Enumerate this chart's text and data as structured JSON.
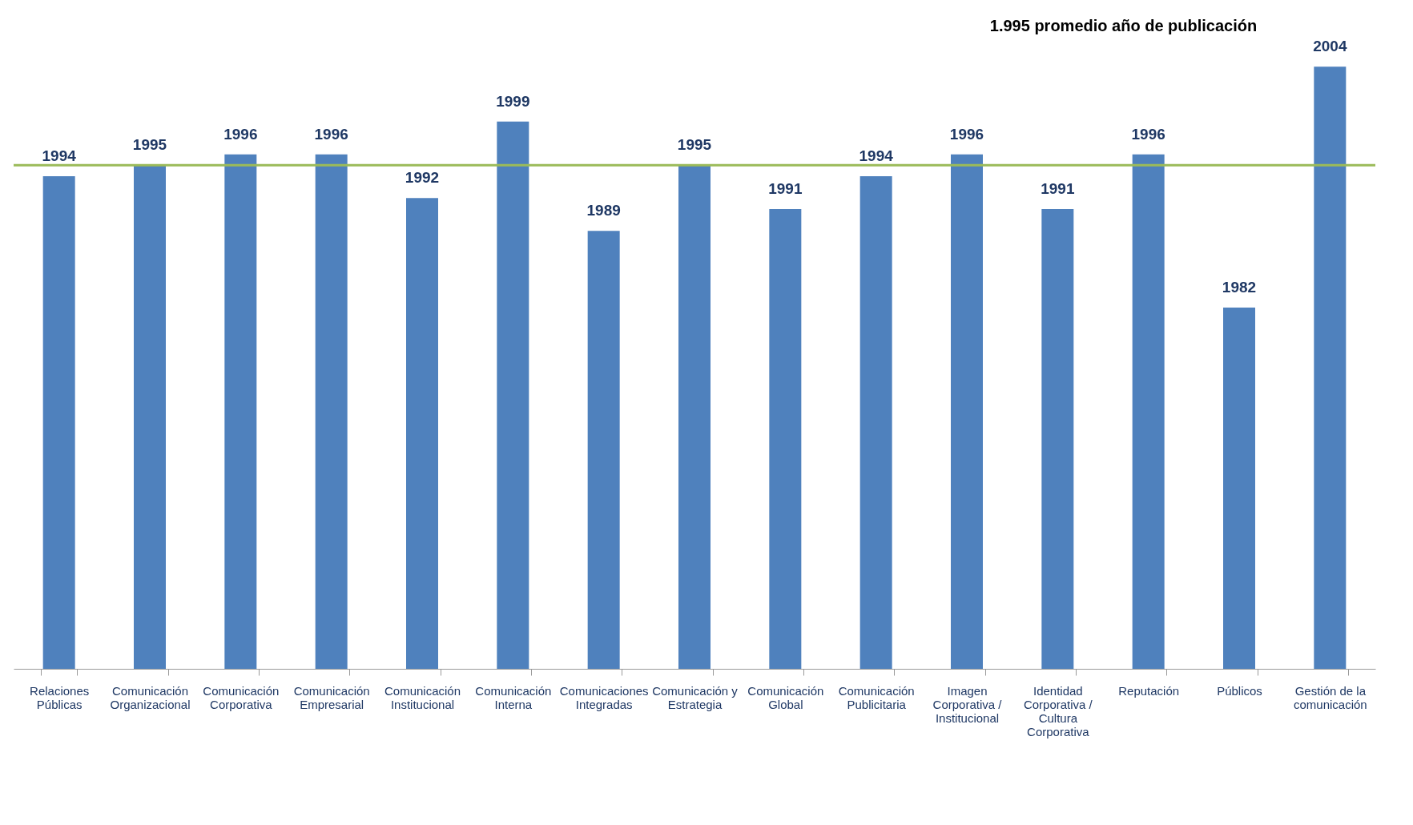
{
  "chart_data": {
    "type": "bar",
    "categories": [
      "Relaciones Públicas",
      "Comunicación Organizacional",
      "Comunicación Corporativa",
      "Comunicación Empresarial",
      "Comunicación Institucional",
      "Comunicación Interna",
      "Comunicaciones Integradas",
      "Comunicación y Estrategia",
      "Comunicación Global",
      "Comunicación Publicitaria",
      "Imagen Corporativa / Institucional",
      "Identidad Corporativa / Cultura Corporativa",
      "Reputación",
      "Públicos",
      "Gestión de la comunicación"
    ],
    "values": [
      1994,
      1995,
      1996,
      1996,
      1992,
      1999,
      1989,
      1995,
      1991,
      1994,
      1996,
      1991,
      1996,
      1982,
      2004
    ],
    "color": "#4f81bd",
    "data_labels": true,
    "ylim": [
      1949,
      2009
    ],
    "tick_labels": "x",
    "grid": false,
    "annotations": [
      "1.995 promedio  año de publicación"
    ],
    "ref_lines": [
      {
        "axis": "y",
        "value": 1995,
        "color": "#9bbb59"
      }
    ]
  }
}
